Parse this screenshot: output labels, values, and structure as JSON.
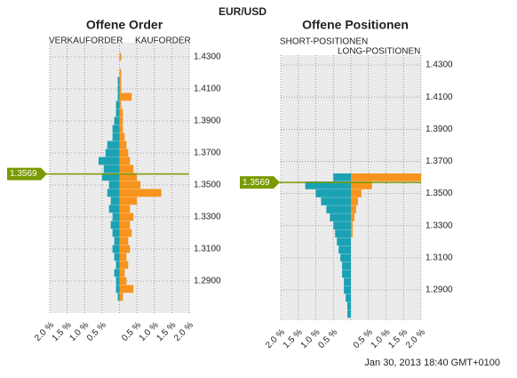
{
  "title": "EUR/USD",
  "timestamp": "Jan 30, 2013 18:40 GMT+0100",
  "chart_data": [
    {
      "type": "butterfly",
      "title": "Offene Order",
      "y": [
        1.28,
        1.285,
        1.29,
        1.295,
        1.3,
        1.305,
        1.31,
        1.315,
        1.32,
        1.325,
        1.33,
        1.335,
        1.34,
        1.345,
        1.35,
        1.355,
        1.36,
        1.365,
        1.37,
        1.375,
        1.38,
        1.385,
        1.39,
        1.395,
        1.4,
        1.405,
        1.41,
        1.415,
        1.42,
        1.425,
        1.43
      ],
      "series": [
        {
          "name": "VERKAUFORDER",
          "color": "#1ba1b4",
          "side": "left",
          "values": [
            0.05,
            0.1,
            0.1,
            0.15,
            0.1,
            0.15,
            0.2,
            0.15,
            0.2,
            0.25,
            0.2,
            0.3,
            0.25,
            0.35,
            0.3,
            0.5,
            0.45,
            0.6,
            0.4,
            0.35,
            0.2,
            0.2,
            0.15,
            0.1,
            0.1,
            0.05,
            0.05,
            0.05,
            0,
            0,
            0
          ]
        },
        {
          "name": "KAUFORDER",
          "color": "#f7941d",
          "side": "right",
          "values": [
            0.1,
            0.4,
            0.2,
            0.15,
            0.25,
            0.2,
            0.3,
            0.25,
            0.35,
            0.3,
            0.4,
            0.3,
            0.5,
            1.2,
            0.6,
            0.5,
            0.4,
            0.3,
            0.25,
            0.2,
            0.15,
            0.1,
            0.1,
            0.1,
            0.05,
            0.35,
            0.05,
            0.05,
            0.05,
            0,
            0.05
          ]
        }
      ],
      "xlim": [
        0,
        2
      ],
      "xticks": [
        {
          "value": 0.5,
          "label": "0.5 %"
        },
        {
          "value": 1,
          "label": "1.0 %"
        },
        {
          "value": 1.5,
          "label": "1.5 %"
        },
        {
          "value": 2,
          "label": "2.0 %"
        }
      ],
      "ylim": [
        1.27,
        1.4389
      ],
      "yticks": [
        {
          "value": 1.29,
          "label": "1.2900"
        },
        {
          "value": 1.31,
          "label": "1.3100"
        },
        {
          "value": 1.33,
          "label": "1.3300"
        },
        {
          "value": 1.35,
          "label": "1.3500"
        },
        {
          "value": 1.37,
          "label": "1.3700"
        },
        {
          "value": 1.39,
          "label": "1.3900"
        },
        {
          "value": 1.41,
          "label": "1.4100"
        },
        {
          "value": 1.43,
          "label": "1.4300"
        }
      ],
      "current_price": 1.3569,
      "grid": true
    },
    {
      "type": "butterfly",
      "title": "Offene Positionen",
      "y": [
        1.275,
        1.28,
        1.285,
        1.29,
        1.295,
        1.3,
        1.305,
        1.31,
        1.315,
        1.32,
        1.325,
        1.33,
        1.335,
        1.34,
        1.345,
        1.35,
        1.355,
        1.36
      ],
      "series": [
        {
          "name": "SHORT-POSITIONEN",
          "color": "#1ba1b4",
          "side": "left",
          "values": [
            0.1,
            0.1,
            0.15,
            0.2,
            0.2,
            0.25,
            0.25,
            0.3,
            0.35,
            0.4,
            0.45,
            0.5,
            0.6,
            0.7,
            0.85,
            1.0,
            1.3,
            0.5
          ]
        },
        {
          "name": "LONG-POSITIONEN",
          "color": "#f7941d",
          "side": "right",
          "values": [
            0,
            0,
            0,
            0,
            0,
            0,
            0,
            0,
            0,
            0,
            0.05,
            0.05,
            0.1,
            0.15,
            0.2,
            0.3,
            0.6,
            2.0
          ]
        }
      ],
      "xlim": [
        0,
        2
      ],
      "xticks": [
        {
          "value": 0.5,
          "label": "0.5 %"
        },
        {
          "value": 1,
          "label": "1.0 %"
        },
        {
          "value": 1.5,
          "label": "1.5 %"
        },
        {
          "value": 2,
          "label": "2.0 %"
        }
      ],
      "ylim": [
        1.2712,
        1.4361
      ],
      "yticks": [
        {
          "value": 1.29,
          "label": "1.2900"
        },
        {
          "value": 1.31,
          "label": "1.3100"
        },
        {
          "value": 1.33,
          "label": "1.3300"
        },
        {
          "value": 1.35,
          "label": "1.3500"
        },
        {
          "value": 1.37,
          "label": "1.3700"
        },
        {
          "value": 1.39,
          "label": "1.3900"
        },
        {
          "value": 1.41,
          "label": "1.4100"
        },
        {
          "value": 1.43,
          "label": "1.4300"
        }
      ],
      "current_price": 1.3569,
      "grid": true
    }
  ]
}
